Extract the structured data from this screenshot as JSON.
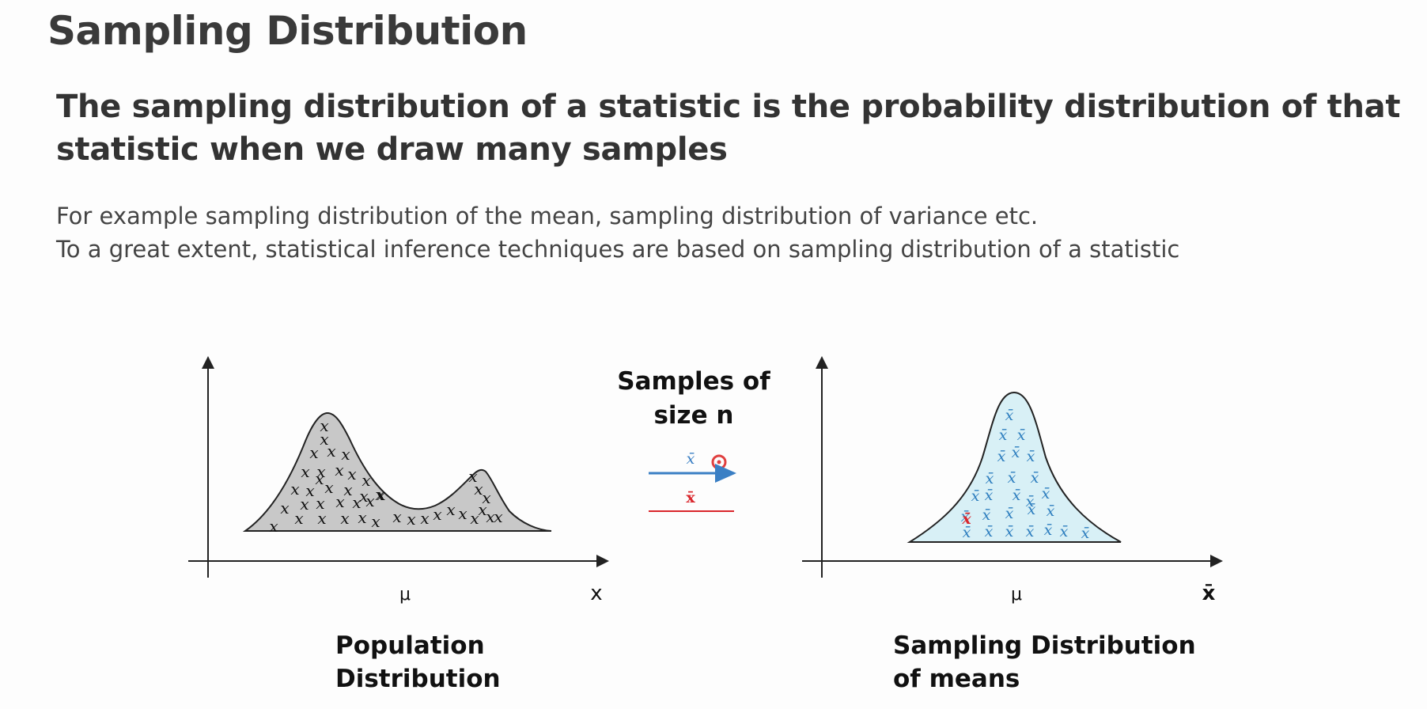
{
  "slide": {
    "title": "Sampling Distribution",
    "definition_line1": "The sampling distribution of a statistic is the probability distribution of that",
    "definition_line2": "statistic when we draw many samples",
    "body_line1": "For example sampling distribution of the mean, sampling distribution of variance etc.",
    "body_line2": "To a great extent, statistical inference techniques are based on sampling distribution of a statistic"
  },
  "diagram": {
    "left_panel": {
      "x_axis_label": "x",
      "mu_label": "μ",
      "caption_line1": "Population",
      "caption_line2": "Distribution",
      "marker": "x",
      "fill_color": "#c8c8c8"
    },
    "middle": {
      "line1": "Samples of",
      "line2": "size n",
      "blue_marker": "x̄",
      "red_marker": "x̄",
      "arrow_color": "#3a7fc4",
      "red_color": "#d9262c"
    },
    "right_panel": {
      "x_axis_label": "x̄",
      "mu_label": "μ",
      "caption_line1": "Sampling Distribution",
      "caption_line2": "of means",
      "marker": "x̄",
      "fill_color": "#d8f0f6",
      "marker_color": "#2f7fbf",
      "highlight_color": "#d9262c"
    }
  }
}
